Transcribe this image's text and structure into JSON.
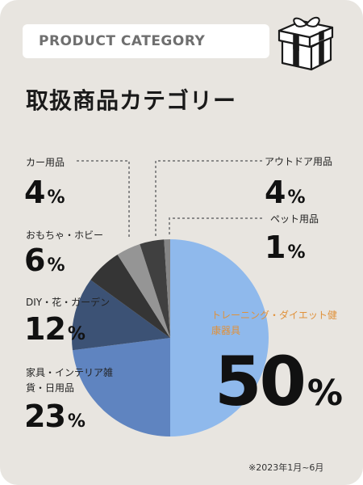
{
  "header": {
    "category_label": "PRODUCT CATEGORY"
  },
  "title": "取扱商品カテゴリー",
  "note": "※2023年1月~6月",
  "icons": {
    "gift": "gift-box-icon"
  },
  "chart_data": {
    "type": "pie",
    "title": "取扱商品カテゴリー",
    "start_angle_deg": 0,
    "direction": "clockwise",
    "slices": [
      {
        "label": "トレーニング・ダイエット健康器具",
        "value": 50,
        "color": "#8fb9ec"
      },
      {
        "label": "家具・インテリア雑貨・日用品",
        "value": 23,
        "color": "#5f84c0"
      },
      {
        "label": "DIY・花・ガーデン",
        "value": 12,
        "color": "#3c5275"
      },
      {
        "label": "おもちゃ・ホビー",
        "value": 6,
        "color": "#353535"
      },
      {
        "label": "カー用品",
        "value": 4,
        "color": "#959595"
      },
      {
        "label": "アウトドア用品",
        "value": 4,
        "color": "#404040"
      },
      {
        "label": "ペット用品",
        "value": 1,
        "color": "#858585"
      }
    ],
    "unit": "%"
  }
}
